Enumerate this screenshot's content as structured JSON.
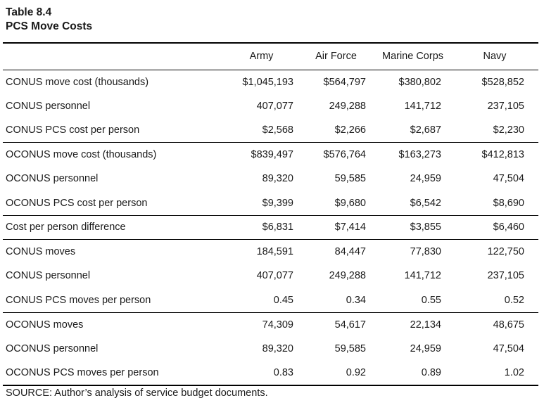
{
  "caption": {
    "table_number": "Table 8.4",
    "title": "PCS Move Costs"
  },
  "table": {
    "headers": [
      "Army",
      "Air Force",
      "Marine Corps",
      "Navy"
    ],
    "rows": [
      {
        "label": "CONUS move cost (thousands)",
        "values": [
          "$1,045,193",
          "$564,797",
          "$380,802",
          "$528,852"
        ]
      },
      {
        "label": "CONUS personnel",
        "values": [
          "407,077",
          "249,288",
          "141,712",
          "237,105"
        ]
      },
      {
        "label": "CONUS PCS cost per person",
        "values": [
          "$2,568",
          "$2,266",
          "$2,687",
          "$2,230"
        ]
      },
      {
        "label": "OCONUS move cost (thousands)",
        "values": [
          "$839,497",
          "$576,764",
          "$163,273",
          "$412,813"
        ]
      },
      {
        "label": "OCONUS personnel",
        "values": [
          "89,320",
          "59,585",
          "24,959",
          "47,504"
        ]
      },
      {
        "label": "OCONUS PCS cost per person",
        "values": [
          "$9,399",
          "$9,680",
          "$6,542",
          "$8,690"
        ]
      },
      {
        "label": "Cost per person difference",
        "values": [
          "$6,831",
          "$7,414",
          "$3,855",
          "$6,460"
        ]
      },
      {
        "label": "CONUS moves",
        "values": [
          "184,591",
          "84,447",
          "77,830",
          "122,750"
        ]
      },
      {
        "label": "CONUS personnel",
        "values": [
          "407,077",
          "249,288",
          "141,712",
          "237,105"
        ]
      },
      {
        "label": "CONUS PCS moves per person",
        "values": [
          "0.45",
          "0.34",
          "0.55",
          "0.52"
        ]
      },
      {
        "label": "OCONUS moves",
        "values": [
          "74,309",
          "54,617",
          "22,134",
          "48,675"
        ]
      },
      {
        "label": "OCONUS personnel",
        "values": [
          "89,320",
          "59,585",
          "24,959",
          "47,504"
        ]
      },
      {
        "label": "OCONUS PCS moves per person",
        "values": [
          "0.83",
          "0.92",
          "0.89",
          "1.02"
        ]
      }
    ]
  },
  "source_note": "SOURCE: Author’s analysis of service budget documents."
}
